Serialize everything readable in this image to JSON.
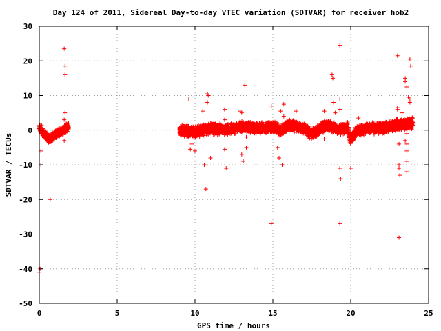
{
  "chart_data": {
    "type": "scatter",
    "title": "Day 124 of 2011, Sidereal Day-to-day VTEC variation (SDTVAR) for receiver hob2",
    "xlabel": "GPS time / hours",
    "ylabel": "SDTVAR / TECUs",
    "xlim": [
      0,
      25
    ],
    "ylim": [
      -50,
      30
    ],
    "xticks": [
      0,
      5,
      10,
      15,
      20,
      25
    ],
    "yticks": [
      -50,
      -40,
      -30,
      -20,
      -10,
      0,
      10,
      20,
      30
    ],
    "grid": true,
    "marker": "+",
    "color": "#ff0000",
    "segments": [
      {
        "x_start": 0.0,
        "x_end": 1.9,
        "center": [
          [
            0.0,
            0.5
          ],
          [
            0.3,
            -1.0
          ],
          [
            0.6,
            -2.5
          ],
          [
            1.0,
            -1.5
          ],
          [
            1.5,
            0.0
          ],
          [
            1.9,
            1.0
          ]
        ],
        "spread": 1.4
      },
      {
        "x_start": 9.0,
        "x_end": 24.0,
        "center": [
          [
            9.0,
            0.0
          ],
          [
            10.0,
            -0.5
          ],
          [
            11.0,
            0.5
          ],
          [
            12.0,
            0.0
          ],
          [
            13.0,
            1.0
          ],
          [
            14.0,
            0.5
          ],
          [
            15.0,
            1.0
          ],
          [
            15.5,
            0.0
          ],
          [
            16.0,
            1.5
          ],
          [
            17.0,
            0.5
          ],
          [
            17.5,
            -1.0
          ],
          [
            18.5,
            1.5
          ],
          [
            19.3,
            0.0
          ],
          [
            19.8,
            1.0
          ],
          [
            20.0,
            -3.0
          ],
          [
            20.3,
            -0.5
          ],
          [
            21.0,
            0.5
          ],
          [
            22.0,
            0.5
          ],
          [
            23.0,
            1.5
          ],
          [
            24.0,
            2.0
          ]
        ],
        "spread": 1.8
      }
    ],
    "outliers": [
      [
        0.0,
        -41
      ],
      [
        0.05,
        -40
      ],
      [
        0.1,
        -10
      ],
      [
        0.1,
        -6
      ],
      [
        0.15,
        1.5
      ],
      [
        0.7,
        -20
      ],
      [
        1.6,
        23.5
      ],
      [
        1.65,
        18.5
      ],
      [
        1.65,
        16
      ],
      [
        1.65,
        5
      ],
      [
        1.6,
        3
      ],
      [
        1.6,
        -3
      ],
      [
        9.6,
        9
      ],
      [
        9.7,
        -5.5
      ],
      [
        9.8,
        -4
      ],
      [
        10.0,
        -6
      ],
      [
        10.3,
        1
      ],
      [
        10.5,
        5.5
      ],
      [
        10.6,
        -10
      ],
      [
        10.7,
        -17
      ],
      [
        10.8,
        10.5
      ],
      [
        10.85,
        10
      ],
      [
        10.8,
        8
      ],
      [
        11.0,
        -8
      ],
      [
        11.9,
        6
      ],
      [
        11.9,
        3
      ],
      [
        11.9,
        -5.5
      ],
      [
        12.0,
        -11
      ],
      [
        12.9,
        5.5
      ],
      [
        13.0,
        5
      ],
      [
        13.0,
        -7
      ],
      [
        13.1,
        -9
      ],
      [
        13.2,
        13
      ],
      [
        13.3,
        -2
      ],
      [
        13.3,
        -5
      ],
      [
        14.9,
        7
      ],
      [
        14.9,
        -27
      ],
      [
        15.3,
        -5
      ],
      [
        15.4,
        -8
      ],
      [
        15.5,
        5.5
      ],
      [
        15.6,
        -10
      ],
      [
        15.7,
        7.5
      ],
      [
        15.7,
        4
      ],
      [
        16.5,
        5.5
      ],
      [
        18.3,
        5.5
      ],
      [
        18.3,
        -2.5
      ],
      [
        18.8,
        16
      ],
      [
        18.85,
        15
      ],
      [
        18.9,
        8
      ],
      [
        19.0,
        5
      ],
      [
        19.3,
        24.5
      ],
      [
        19.3,
        9
      ],
      [
        19.3,
        6
      ],
      [
        19.3,
        -11
      ],
      [
        19.35,
        -14
      ],
      [
        19.3,
        -27
      ],
      [
        20.0,
        -11
      ],
      [
        20.5,
        3.5
      ],
      [
        23.0,
        21.5
      ],
      [
        23.0,
        6.5
      ],
      [
        23.0,
        6
      ],
      [
        23.1,
        -4
      ],
      [
        23.1,
        -10
      ],
      [
        23.1,
        -11
      ],
      [
        23.15,
        -13
      ],
      [
        23.3,
        5
      ],
      [
        23.5,
        15
      ],
      [
        23.5,
        14
      ],
      [
        23.6,
        12.5
      ],
      [
        23.7,
        9.5
      ],
      [
        23.8,
        8
      ],
      [
        23.8,
        20.5
      ],
      [
        23.85,
        18.5
      ],
      [
        23.6,
        -9
      ],
      [
        23.6,
        -12
      ],
      [
        23.6,
        -6
      ],
      [
        23.6,
        -4
      ],
      [
        23.5,
        -3
      ],
      [
        23.6,
        -1
      ],
      [
        23.1,
        -31
      ],
      [
        23.8,
        9
      ]
    ]
  }
}
